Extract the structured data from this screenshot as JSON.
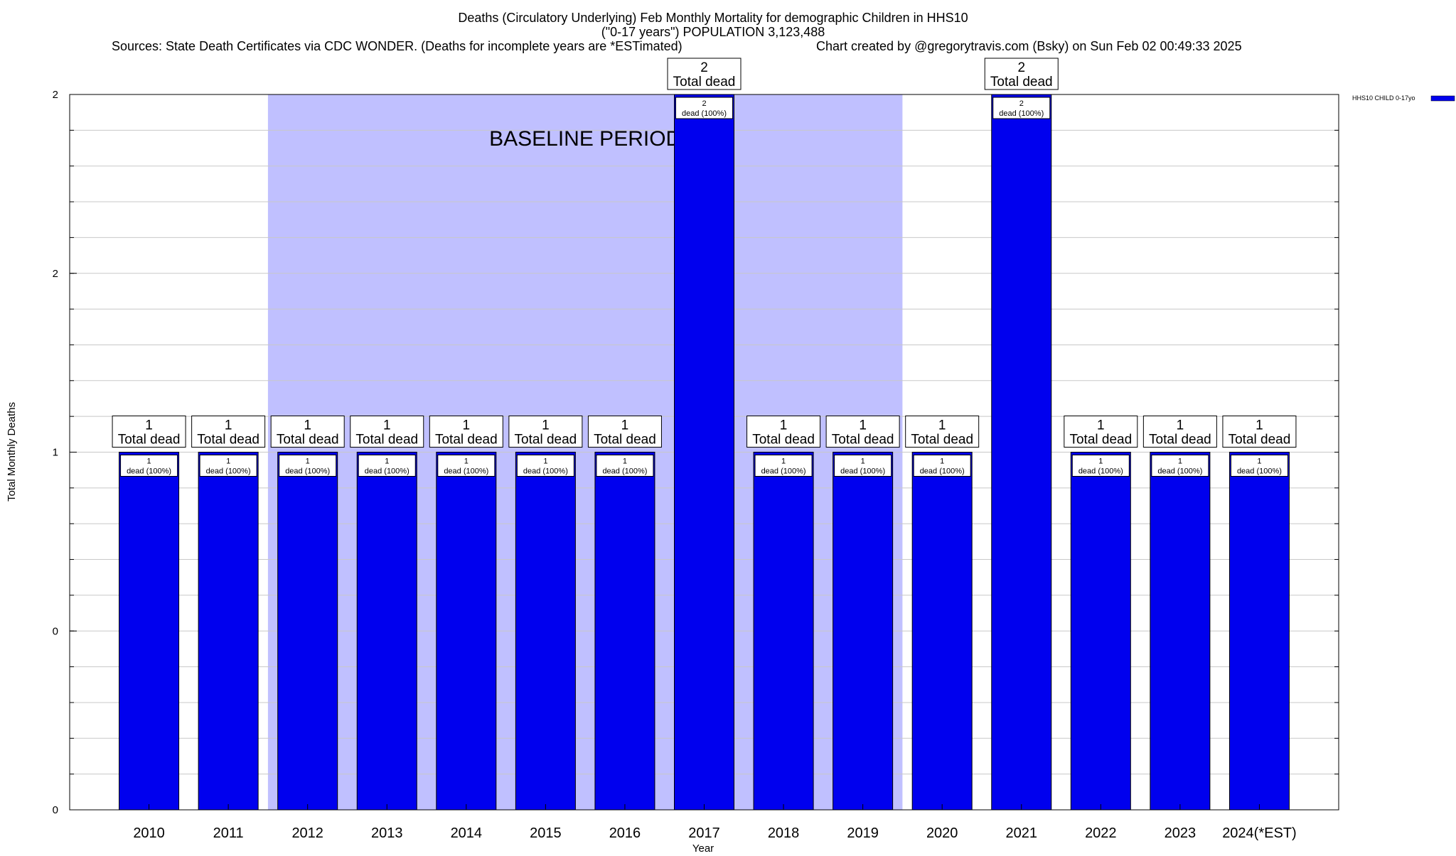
{
  "chart_data": {
    "type": "bar",
    "title_lines": [
      "Deaths (Circulatory Underlying) Feb Monthly Mortality for demographic Children in HHS10",
      "(\"0-17 years\") POPULATION 3,123,488"
    ],
    "sources_text": "Sources: State Death Certificates via CDC WONDER. (Deaths for incomplete years are *ESTimated)",
    "credit_text": "Chart created by @gregorytravis.com (Bsky) on Sun Feb 02 00:49:33 2025",
    "xlabel": "Year",
    "ylabel": "Total Monthly Deaths",
    "categories": [
      "2010",
      "2011",
      "2012",
      "2013",
      "2014",
      "2015",
      "2016",
      "2017",
      "2018",
      "2019",
      "2020",
      "2021",
      "2022",
      "2023",
      "2024(*EST)"
    ],
    "series": [
      {
        "name": "HHS10 CHILD 0-17yo",
        "color": "#0000ee",
        "values": [
          1,
          1,
          1,
          1,
          1,
          1,
          1,
          2,
          1,
          1,
          1,
          2,
          1,
          1,
          1
        ]
      }
    ],
    "ylim": [
      0,
      2
    ],
    "y_ticks": [
      {
        "value": 0,
        "label": "0"
      },
      {
        "value": 0.5,
        "label": "0"
      },
      {
        "value": 1,
        "label": "1"
      },
      {
        "value": 1.5,
        "label": "2"
      },
      {
        "value": 2,
        "label": "2"
      }
    ],
    "grid": true,
    "legend_position": "top-right",
    "top_label_suffix": "Total dead",
    "inner_label_suffix": "dead (100%)",
    "baseline_period": {
      "label": "BASELINE PERIOD",
      "start_category": "2012",
      "end_category": "2019",
      "color": "#c0c0ff"
    }
  }
}
